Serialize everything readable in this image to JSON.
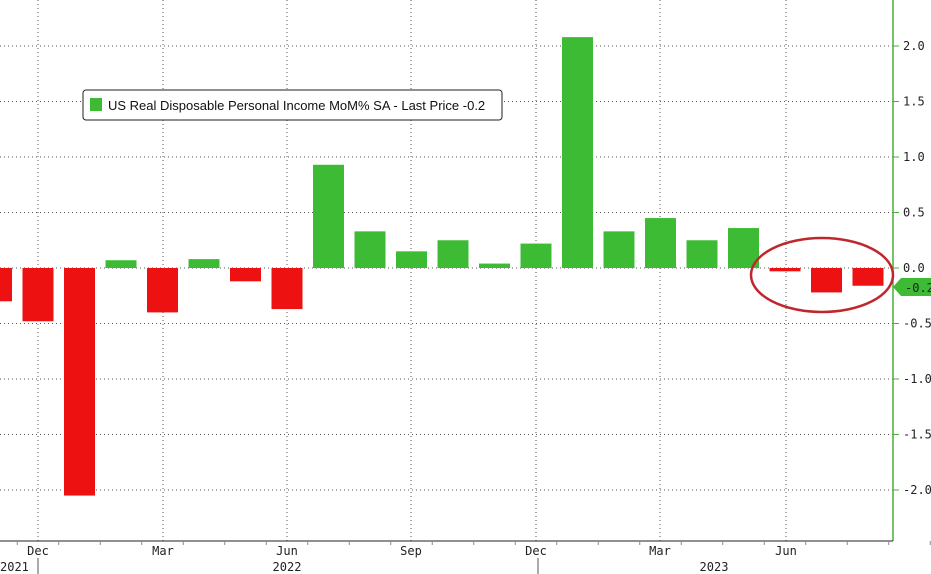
{
  "chart_data": {
    "type": "bar",
    "title": "",
    "legend": {
      "label": "US Real Disposable Personal Income MoM% SA - Last Price -0.2",
      "placement": "top-left"
    },
    "last_price_label": "-0.2",
    "ylabel": "",
    "xlabel": "",
    "ylim": [
      -2.5,
      2.5
    ],
    "yticks": [
      "2.0",
      "1.5",
      "1.0",
      "0.5",
      "0.0",
      "-0.5",
      "-1.0",
      "-1.5",
      "-2.0"
    ],
    "ytick_values": [
      2.0,
      1.5,
      1.0,
      0.5,
      0.0,
      -0.5,
      -1.0,
      -1.5,
      -2.0
    ],
    "x_month_labels": [
      "Dec",
      "Mar",
      "Jun",
      "Sep",
      "Dec",
      "Mar",
      "Jun"
    ],
    "x_year_labels": [
      "2021",
      "2022",
      "2023"
    ],
    "categories": [
      "Nov 2021",
      "Dec 2021",
      "Jan 2022",
      "Feb 2022",
      "Mar 2022",
      "Apr 2022",
      "May 2022",
      "Jun 2022",
      "Jul 2022",
      "Aug 2022",
      "Sep 2022",
      "Oct 2022",
      "Nov 2022",
      "Dec 2022",
      "Jan 2023",
      "Feb 2023",
      "Mar 2023",
      "Apr 2023",
      "May 2023",
      "Jun 2023",
      "Jul 2023",
      "Aug 2023"
    ],
    "values": [
      -0.3,
      -0.48,
      -2.05,
      0.07,
      -0.4,
      0.08,
      -0.12,
      -0.37,
      0.93,
      0.33,
      0.15,
      0.25,
      0.04,
      0.22,
      2.08,
      0.33,
      0.45,
      0.25,
      0.36,
      -0.03,
      -0.22,
      -0.16
    ],
    "colors": {
      "positive": "#3dbb35",
      "negative": "#ee1111",
      "axis": "#4cae3c",
      "annotation": "#c0272d"
    },
    "grid": true
  }
}
